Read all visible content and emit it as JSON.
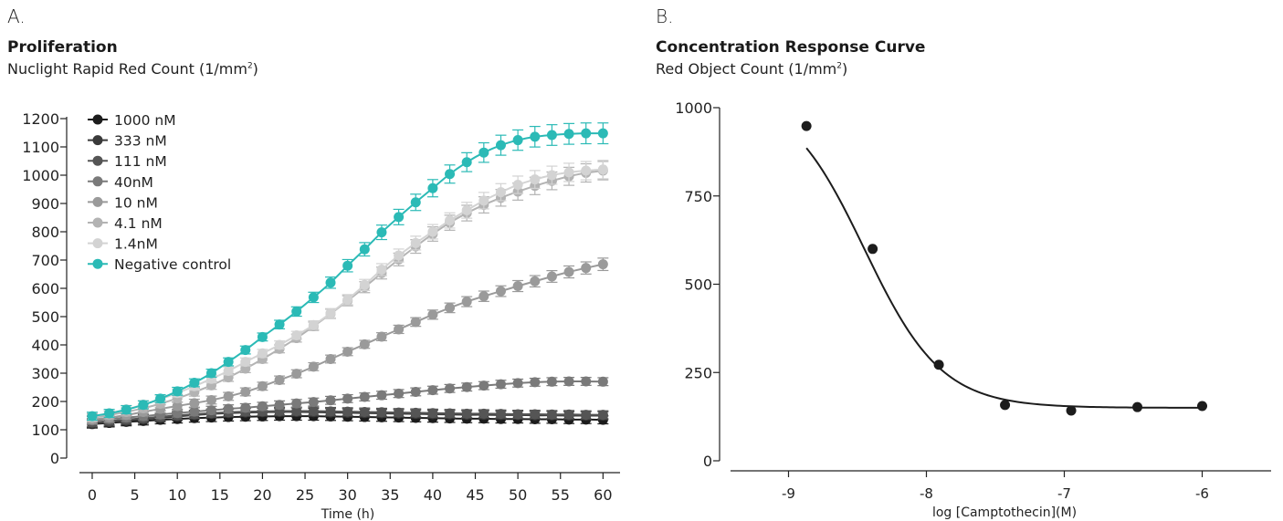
{
  "chart_data": [
    {
      "type": "line",
      "panel_label": "A.",
      "title": "Proliferation",
      "subtitle_main": "Nuclight Rapid Red Count (1/mm",
      "subtitle_sup": "2",
      "subtitle_end": ")",
      "xlabel": "Time (h)",
      "ylabel": "",
      "xlim": [
        -3,
        62
      ],
      "ylim": [
        0,
        1200
      ],
      "xticks": [
        0,
        5,
        10,
        15,
        20,
        25,
        30,
        35,
        40,
        45,
        50,
        55,
        60
      ],
      "yticks": [
        0,
        100,
        200,
        300,
        400,
        500,
        600,
        700,
        800,
        900,
        1000,
        1100,
        1200
      ],
      "legend_position": "top-left",
      "x": [
        0,
        2,
        4,
        6,
        8,
        10,
        12,
        14,
        16,
        18,
        20,
        22,
        24,
        26,
        28,
        30,
        32,
        34,
        36,
        38,
        40,
        42,
        44,
        46,
        48,
        50,
        52,
        54,
        56,
        58,
        60
      ],
      "series": [
        {
          "name": "1000 nM",
          "color": "#1c1c1c",
          "values": [
            120,
            124,
            128,
            131,
            135,
            138,
            141,
            143,
            145,
            146,
            147,
            148,
            148,
            148,
            147,
            146,
            145,
            144,
            143,
            142,
            141,
            140,
            139,
            139,
            138,
            138,
            137,
            137,
            136,
            136,
            135
          ]
        },
        {
          "name": "333 nM",
          "color": "#3a3a3a",
          "values": [
            122,
            127,
            132,
            137,
            142,
            147,
            152,
            156,
            159,
            161,
            162,
            163,
            163,
            162,
            161,
            160,
            159,
            158,
            157,
            156,
            155,
            154,
            153,
            153,
            152,
            152,
            151,
            151,
            150,
            150,
            150
          ]
        },
        {
          "name": "111 nM",
          "color": "#555555",
          "values": [
            126,
            131,
            136,
            141,
            146,
            151,
            155,
            159,
            162,
            164,
            165,
            166,
            166,
            166,
            165,
            164,
            163,
            162,
            161,
            160,
            159,
            158,
            157,
            157,
            156,
            155,
            155,
            154,
            154,
            153,
            153
          ]
        },
        {
          "name": "40nM",
          "color": "#7a7a7a",
          "values": [
            133,
            138,
            143,
            148,
            154,
            159,
            164,
            169,
            174,
            178,
            183,
            188,
            193,
            198,
            204,
            210,
            216,
            222,
            228,
            234,
            240,
            246,
            251,
            256,
            261,
            265,
            268,
            270,
            271,
            271,
            270
          ]
        },
        {
          "name": "10 nM",
          "color": "#9a9a9a",
          "values": [
            136,
            143,
            152,
            163,
            174,
            184,
            194,
            205,
            218,
            234,
            254,
            276,
            298,
            323,
            350,
            376,
            402,
            429,
            455,
            481,
            507,
            531,
            553,
            572,
            590,
            608,
            625,
            642,
            658,
            672,
            685
          ]
        },
        {
          "name": "4.1 nM",
          "color": "#b3b3b3",
          "values": [
            142,
            152,
            163,
            176,
            192,
            211,
            233,
            257,
            285,
            316,
            350,
            386,
            424,
            466,
            510,
            556,
            604,
            654,
            702,
            748,
            792,
            832,
            866,
            895,
            920,
            942,
            962,
            980,
            996,
            1008,
            1016
          ]
        },
        {
          "name": "1.4nM",
          "color": "#d3d3d3",
          "values": [
            146,
            158,
            172,
            189,
            208,
            230,
            254,
            280,
            308,
            340,
            370,
            400,
            434,
            470,
            512,
            560,
            612,
            666,
            716,
            760,
            800,
            840,
            876,
            910,
            940,
            966,
            985,
            1000,
            1010,
            1016,
            1020
          ]
        },
        {
          "name": "Negative control",
          "color": "#2bbab6",
          "values": [
            148,
            158,
            171,
            188,
            210,
            236,
            266,
            300,
            340,
            382,
            428,
            472,
            518,
            568,
            620,
            680,
            738,
            798,
            852,
            904,
            954,
            1004,
            1046,
            1080,
            1106,
            1124,
            1136,
            1142,
            1146,
            1148,
            1148
          ]
        }
      ]
    },
    {
      "type": "scatter",
      "panel_label": "B.",
      "title": "Concentration Response Curve",
      "subtitle_main": "Red Object Count (1/mm",
      "subtitle_sup": "2",
      "subtitle_end": ")",
      "xlabel": "log [Camptothecin](M)",
      "ylabel": "",
      "xlim": [
        -9.5,
        -5.5
      ],
      "ylim": [
        0,
        1000
      ],
      "xticks": [
        -9,
        -8,
        -7,
        -6
      ],
      "yticks": [
        0,
        250,
        500,
        750,
        1000
      ],
      "color": "#1c1c1c",
      "x": [
        -8.87,
        -8.39,
        -7.91,
        -7.43,
        -6.95,
        -6.47,
        -6.0
      ],
      "values": [
        948,
        600,
        272,
        158,
        142,
        152,
        155
      ]
    }
  ]
}
